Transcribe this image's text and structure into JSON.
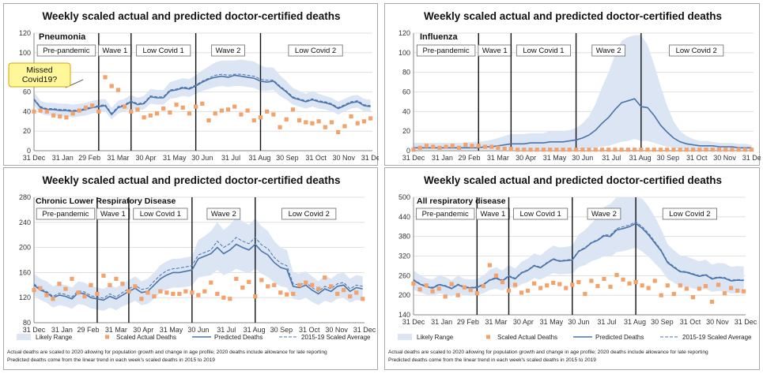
{
  "footnote": {
    "line1": "Actual deaths are scaled to 2020 allowing for population growth and change in age profile; 2020 deaths include allowance for late reporting",
    "line2": "Predicted deaths come from the linear trend in each week's scaled deaths in 2015 to 2019"
  },
  "legend": {
    "range": "Likely Range",
    "actual": "Scaled Actual Deaths",
    "predicted": "Predicted Deaths",
    "average": "2015-19 Scaled Average"
  },
  "colors": {
    "band": "#dbe5f3",
    "predicted": "#4a74aa",
    "average": "#4a74aa",
    "actual": "#f4a26b",
    "phase_line": "#111111",
    "grid": "#d9d9d9",
    "callout_fill": "#fff79a",
    "callout_border": "#d9a400"
  },
  "chart_data": [
    {
      "type": "line",
      "title": "Weekly scaled actual and predicted doctor-certified deaths",
      "panel_label": "Pneumonia",
      "ylim": [
        0,
        120
      ],
      "yticks": [
        0,
        20,
        40,
        60,
        80,
        100,
        120
      ],
      "x_tick_labels": [
        "31 Dec",
        "31 Jan",
        "29 Feb",
        "31 Mar",
        "30 Apr",
        "31 May",
        "30 Jun",
        "31 Jul",
        "31 Aug",
        "30 Sep",
        "31 Oct",
        "30 Nov",
        "31 Dec"
      ],
      "phases": [
        {
          "label": "Pre-pandemic",
          "start_week": 0,
          "end_week": 10
        },
        {
          "label": "Wave 1",
          "start_week": 10,
          "end_week": 15
        },
        {
          "label": "Low Covid 1",
          "start_week": 15,
          "end_week": 25
        },
        {
          "label": "Wave 2",
          "start_week": 25,
          "end_week": 35
        },
        {
          "label": "Low Covid 2",
          "start_week": 35,
          "end_week": 52
        }
      ],
      "annotation": "Missed Covid19?",
      "predicted": [
        52,
        44,
        42,
        42,
        41,
        41,
        40,
        41,
        42,
        44,
        45,
        46,
        37,
        44,
        46,
        50,
        47,
        48,
        55,
        54,
        54,
        61,
        62,
        64,
        63,
        66,
        70,
        73,
        75,
        76,
        75,
        77,
        76,
        75,
        74,
        71,
        70,
        71,
        65,
        60,
        54,
        52,
        50,
        52,
        50,
        49,
        47,
        43,
        46,
        49,
        50,
        46,
        45
      ],
      "average": [
        53,
        45,
        43,
        43,
        42,
        42,
        41,
        42,
        43,
        45,
        46,
        47,
        38,
        45,
        47,
        51,
        48,
        49,
        56,
        55,
        55,
        62,
        63,
        65,
        64,
        67,
        71,
        74,
        77,
        78,
        77,
        78,
        78,
        77,
        76,
        73,
        72,
        72,
        66,
        61,
        55,
        53,
        51,
        53,
        51,
        50,
        48,
        44,
        47,
        50,
        51,
        47,
        46
      ],
      "range_low": [
        46,
        38,
        36,
        36,
        35,
        35,
        34,
        35,
        36,
        38,
        39,
        40,
        32,
        38,
        40,
        43,
        41,
        42,
        48,
        47,
        47,
        53,
        54,
        56,
        55,
        58,
        61,
        63,
        65,
        66,
        65,
        66,
        66,
        65,
        64,
        61,
        61,
        62,
        56,
        52,
        47,
        45,
        43,
        45,
        43,
        42,
        40,
        37,
        40,
        43,
        44,
        40,
        39
      ],
      "range_high": [
        60,
        51,
        49,
        49,
        48,
        48,
        47,
        48,
        49,
        51,
        52,
        53,
        44,
        51,
        53,
        57,
        54,
        56,
        63,
        62,
        62,
        70,
        72,
        74,
        73,
        77,
        82,
        86,
        90,
        92,
        92,
        92,
        93,
        92,
        91,
        87,
        85,
        85,
        77,
        71,
        64,
        61,
        58,
        61,
        58,
        56,
        54,
        50,
        53,
        56,
        57,
        53,
        52
      ],
      "actual": [
        40,
        41,
        40,
        36,
        35,
        34,
        38,
        41,
        44,
        46,
        40,
        75,
        66,
        62,
        45,
        40,
        42,
        34,
        36,
        38,
        43,
        39,
        47,
        44,
        38,
        45,
        48,
        31,
        38,
        41,
        42,
        45,
        37,
        41,
        31,
        34,
        40,
        37,
        24,
        32,
        42,
        31,
        29,
        28,
        30,
        24,
        29,
        19,
        25,
        35,
        28,
        30,
        33
      ]
    },
    {
      "type": "line",
      "title": "Weekly scaled actual and predicted doctor-certified deaths",
      "panel_label": "Influenza",
      "ylim": [
        0,
        120
      ],
      "yticks": [
        0,
        20,
        40,
        60,
        80,
        100,
        120
      ],
      "x_tick_labels": [
        "31 Dec",
        "31 Jan",
        "29 Feb",
        "31 Mar",
        "30 Apr",
        "31 May",
        "30 Jun",
        "31 Jul",
        "31 Aug",
        "30 Sep",
        "31 Oct",
        "30 Nov",
        "31 Dec"
      ],
      "phases": [
        {
          "label": "Pre-pandemic",
          "start_week": 0,
          "end_week": 10
        },
        {
          "label": "Wave 1",
          "start_week": 10,
          "end_week": 15
        },
        {
          "label": "Low Covid 1",
          "start_week": 15,
          "end_week": 25
        },
        {
          "label": "Wave 2",
          "start_week": 25,
          "end_week": 35
        },
        {
          "label": "Low Covid 2",
          "start_week": 35,
          "end_week": 52
        }
      ],
      "predicted": [
        3,
        3,
        3,
        3,
        3,
        3,
        3,
        3,
        3,
        3,
        3,
        4,
        4,
        5,
        6,
        7,
        7,
        7,
        8,
        8,
        8,
        9,
        9,
        9,
        10,
        11,
        13,
        16,
        21,
        28,
        34,
        42,
        49,
        51,
        53,
        45,
        44,
        36,
        26,
        19,
        13,
        9,
        7,
        6,
        5,
        5,
        5,
        4,
        4,
        4,
        3,
        3,
        3
      ],
      "average": [
        3,
        3,
        3,
        3,
        3,
        3,
        3,
        3,
        3,
        3,
        3,
        4,
        4,
        5,
        6,
        7,
        7,
        7,
        8,
        8,
        8,
        9,
        9,
        9,
        10,
        11,
        13,
        16,
        21,
        28,
        34,
        42,
        49,
        51,
        53,
        45,
        44,
        36,
        26,
        19,
        13,
        9,
        7,
        6,
        5,
        5,
        5,
        4,
        4,
        4,
        3,
        3,
        3
      ],
      "range_low": [
        1,
        1,
        1,
        1,
        1,
        1,
        1,
        1,
        1,
        1,
        1,
        1,
        1,
        1,
        1,
        1,
        1,
        1,
        1,
        1,
        1,
        1,
        1,
        1,
        1,
        1,
        2,
        2,
        3,
        4,
        5,
        7,
        9,
        10,
        12,
        10,
        10,
        8,
        6,
        4,
        3,
        2,
        1,
        1,
        1,
        1,
        1,
        1,
        1,
        1,
        1,
        1,
        1
      ],
      "range_high": [
        8,
        8,
        8,
        8,
        8,
        8,
        8,
        8,
        8,
        9,
        9,
        10,
        11,
        13,
        15,
        17,
        17,
        17,
        18,
        18,
        18,
        20,
        20,
        20,
        21,
        23,
        28,
        35,
        48,
        65,
        80,
        98,
        112,
        116,
        118,
        118,
        108,
        88,
        66,
        46,
        30,
        20,
        15,
        12,
        10,
        10,
        9,
        8,
        8,
        8,
        7,
        7,
        6
      ],
      "actual": [
        1,
        3,
        5,
        4,
        3,
        4,
        5,
        3,
        6,
        5,
        5,
        4,
        4,
        3,
        2,
        2,
        1,
        1,
        1,
        1,
        1,
        1,
        1,
        1,
        1,
        1,
        1,
        1,
        1,
        1,
        1,
        1,
        1,
        1,
        1,
        1,
        1,
        1,
        1,
        1,
        1,
        1,
        1,
        1,
        1,
        1,
        1,
        1,
        1,
        1,
        1,
        1,
        1
      ]
    },
    {
      "type": "line",
      "title": "Weekly scaled actual and predicted doctor-certified deaths",
      "panel_label": "Chronic Lower Respiratory Disease",
      "ylim": [
        80,
        280
      ],
      "yticks": [
        80,
        120,
        160,
        200,
        240,
        280
      ],
      "x_tick_labels": [
        "31 Dec",
        "31 Jan",
        "29 Feb",
        "31 Mar",
        "30 Apr",
        "31 May",
        "30 Jun",
        "31 Jul",
        "31 Aug",
        "30 Sep",
        "31 Oct",
        "30 Nov",
        "31 Dec"
      ],
      "phases": [
        {
          "label": "Pre-pandemic",
          "start_week": 0,
          "end_week": 10
        },
        {
          "label": "Wave 1",
          "start_week": 10,
          "end_week": 15
        },
        {
          "label": "Low Covid 1",
          "start_week": 15,
          "end_week": 25
        },
        {
          "label": "Wave 2",
          "start_week": 25,
          "end_week": 35
        },
        {
          "label": "Low Covid 2",
          "start_week": 35,
          "end_week": 52
        }
      ],
      "predicted": [
        140,
        132,
        128,
        120,
        124,
        122,
        118,
        128,
        126,
        120,
        118,
        116,
        122,
        118,
        124,
        130,
        135,
        128,
        130,
        140,
        150,
        156,
        160,
        160,
        162,
        164,
        182,
        186,
        190,
        200,
        190,
        196,
        205,
        200,
        196,
        205,
        194,
        188,
        176,
        168,
        165,
        138,
        136,
        140,
        132,
        126,
        134,
        130,
        138,
        140,
        130,
        136,
        134
      ],
      "average": [
        142,
        134,
        130,
        122,
        127,
        125,
        121,
        131,
        129,
        123,
        121,
        119,
        126,
        121,
        128,
        134,
        140,
        133,
        135,
        146,
        156,
        163,
        166,
        167,
        169,
        171,
        188,
        192,
        196,
        210,
        200,
        206,
        216,
        210,
        206,
        216,
        204,
        198,
        184,
        175,
        171,
        142,
        140,
        144,
        136,
        130,
        138,
        134,
        142,
        144,
        134,
        140,
        138
      ],
      "range_low": [
        124,
        116,
        112,
        104,
        108,
        106,
        102,
        110,
        108,
        103,
        101,
        99,
        104,
        100,
        106,
        110,
        115,
        108,
        110,
        118,
        128,
        133,
        136,
        136,
        137,
        139,
        152,
        154,
        156,
        164,
        156,
        160,
        166,
        162,
        159,
        166,
        158,
        153,
        144,
        138,
        136,
        118,
        116,
        120,
        113,
        108,
        115,
        112,
        118,
        120,
        112,
        116,
        115
      ],
      "range_high": [
        158,
        150,
        146,
        138,
        142,
        140,
        136,
        146,
        144,
        138,
        136,
        134,
        140,
        136,
        142,
        148,
        154,
        146,
        150,
        160,
        172,
        178,
        182,
        182,
        184,
        186,
        212,
        218,
        226,
        240,
        228,
        236,
        248,
        242,
        236,
        246,
        234,
        226,
        210,
        200,
        196,
        160,
        158,
        162,
        154,
        146,
        155,
        150,
        158,
        160,
        150,
        156,
        154
      ],
      "actual": [
        132,
        135,
        124,
        118,
        142,
        134,
        150,
        128,
        122,
        140,
        126,
        155,
        140,
        150,
        142,
        130,
        138,
        118,
        128,
        122,
        130,
        128,
        126,
        126,
        130,
        128,
        124,
        130,
        144,
        126,
        120,
        118,
        150,
        136,
        145,
        122,
        148,
        138,
        140,
        128,
        125,
        126,
        140,
        144,
        140,
        134,
        152,
        138,
        126,
        132,
        122,
        128,
        118
      ]
    },
    {
      "type": "line",
      "title": "Weekly scaled actual and predicted doctor-certified deaths",
      "panel_label": "All respiratory disease",
      "ylim": [
        140,
        500
      ],
      "yticks": [
        140,
        200,
        260,
        320,
        380,
        440,
        500
      ],
      "x_tick_labels": [
        "31 Dec",
        "31 Jan",
        "29 Feb",
        "31 Mar",
        "30 Apr",
        "31 May",
        "30 Jun",
        "31 Jul",
        "31 Aug",
        "30 Sep",
        "31 Oct",
        "30 Nov",
        "31 Dec"
      ],
      "phases": [
        {
          "label": "Pre-pandemic",
          "start_week": 0,
          "end_week": 10
        },
        {
          "label": "Wave 1",
          "start_week": 10,
          "end_week": 15
        },
        {
          "label": "Low Covid 1",
          "start_week": 15,
          "end_week": 25
        },
        {
          "label": "Wave 2",
          "start_week": 25,
          "end_week": 35
        },
        {
          "label": "Low Covid 2",
          "start_week": 35,
          "end_week": 52
        }
      ],
      "predicted": [
        246,
        234,
        226,
        222,
        232,
        228,
        220,
        232,
        224,
        222,
        224,
        232,
        246,
        252,
        244,
        258,
        250,
        268,
        276,
        290,
        284,
        298,
        310,
        304,
        306,
        308,
        334,
        344,
        360,
        368,
        382,
        380,
        400,
        404,
        410,
        420,
        405,
        385,
        360,
        335,
        300,
        285,
        272,
        270,
        264,
        258,
        262,
        250,
        254,
        252,
        244,
        246,
        245
      ],
      "average": [
        248,
        236,
        228,
        224,
        234,
        230,
        222,
        234,
        226,
        224,
        226,
        234,
        248,
        254,
        246,
        260,
        252,
        270,
        278,
        292,
        286,
        300,
        312,
        306,
        308,
        310,
        336,
        346,
        362,
        370,
        385,
        384,
        404,
        410,
        415,
        425,
        410,
        390,
        364,
        338,
        303,
        288,
        274,
        272,
        266,
        260,
        264,
        252,
        256,
        254,
        246,
        248,
        247
      ],
      "range_low": [
        218,
        208,
        202,
        198,
        206,
        202,
        196,
        206,
        200,
        198,
        200,
        206,
        216,
        220,
        214,
        226,
        220,
        234,
        240,
        252,
        248,
        258,
        268,
        264,
        265,
        266,
        286,
        292,
        304,
        310,
        320,
        318,
        332,
        335,
        340,
        346,
        334,
        318,
        298,
        278,
        250,
        238,
        228,
        226,
        221,
        216,
        219,
        210,
        213,
        212,
        205,
        207,
        206
      ],
      "range_high": [
        276,
        262,
        252,
        248,
        260,
        256,
        246,
        260,
        250,
        248,
        250,
        260,
        278,
        286,
        276,
        292,
        282,
        302,
        312,
        328,
        322,
        338,
        352,
        346,
        348,
        352,
        386,
        400,
        420,
        440,
        470,
        480,
        500,
        500,
        500,
        500,
        496,
        472,
        440,
        402,
        356,
        338,
        322,
        318,
        311,
        304,
        309,
        294,
        299,
        297,
        287,
        289,
        288
      ],
      "actual": [
        236,
        218,
        230,
        212,
        220,
        196,
        234,
        200,
        224,
        216,
        206,
        228,
        292,
        260,
        240,
        214,
        232,
        208,
        214,
        236,
        222,
        230,
        238,
        234,
        222,
        232,
        240,
        204,
        244,
        228,
        250,
        226,
        262,
        248,
        236,
        240,
        230,
        222,
        244,
        200,
        230,
        204,
        230,
        220,
        194,
        220,
        228,
        180,
        232,
        206,
        222,
        214,
        212
      ]
    }
  ]
}
